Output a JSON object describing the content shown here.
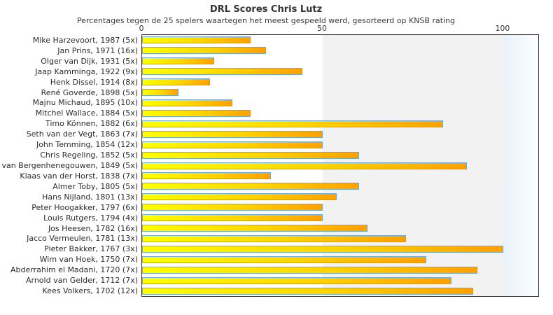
{
  "chart_data": {
    "type": "bar",
    "orientation": "horizontal",
    "title": "DRL Scores Chris Lutz",
    "subtitle": "Percentages tegen de 25 spelers waartegen het meest gespeeld werd, gesorteerd op KNSB rating",
    "categories": [
      "Mike Harzevoort, 1987 (5x)",
      "Jan Prins, 1971 (16x)",
      "Olger van Dijk, 1931 (5x)",
      "Jaap Kamminga, 1922 (9x)",
      "Henk Dissel, 1914 (8x)",
      "René Goverde, 1898 (5x)",
      "Majnu Michaud, 1895 (10x)",
      "Mitchel Wallace, 1884 (5x)",
      "Timo Können, 1882 (6x)",
      "Seth van der Vegt, 1863 (7x)",
      "John Temming, 1854 (12x)",
      "Chris Regeling, 1852 (5x)",
      "van Bergenhenegouwen, 1849 (5x)",
      "Klaas van der Horst, 1838 (7x)",
      "Almer Toby, 1805 (5x)",
      "Hans Nijland, 1801 (13x)",
      "Peter Hoogakker, 1797 (6x)",
      "Louis Rutgers, 1794 (4x)",
      "Jos Heesen, 1782 (16x)",
      "Jacco Vermeulen, 1781 (13x)",
      "Pieter Bakker, 1767 (3x)",
      "Wim van Hoek, 1750 (7x)",
      "Abderrahim el Madani, 1720 (7x)",
      "Arnold van Gelder, 1712 (7x)",
      "Kees Volkers, 1702 (12x)"
    ],
    "values": [
      30,
      34.4,
      20,
      44.4,
      18.8,
      10,
      25,
      30,
      83.3,
      50,
      50,
      60,
      90,
      35.7,
      60,
      53.8,
      50,
      50,
      62.5,
      73.1,
      100,
      78.6,
      92.9,
      85.7,
      91.7
    ],
    "x_ticks": [
      0,
      50,
      100
    ],
    "xlim": [
      0,
      109.7
    ],
    "ylabel": "",
    "xlabel": "",
    "legend": "none",
    "grid": "vertical band shading every 50 units",
    "colors": {
      "bar_gradient_start": "#ffff00",
      "bar_gradient_end": "#ffa000",
      "bar_border": "#6eaad7",
      "band_white": "#ffffff",
      "band_gray": "#f2f2f2",
      "band_blue": "#e9f1f9",
      "plot_border": "#333333",
      "text": "#333333"
    }
  }
}
